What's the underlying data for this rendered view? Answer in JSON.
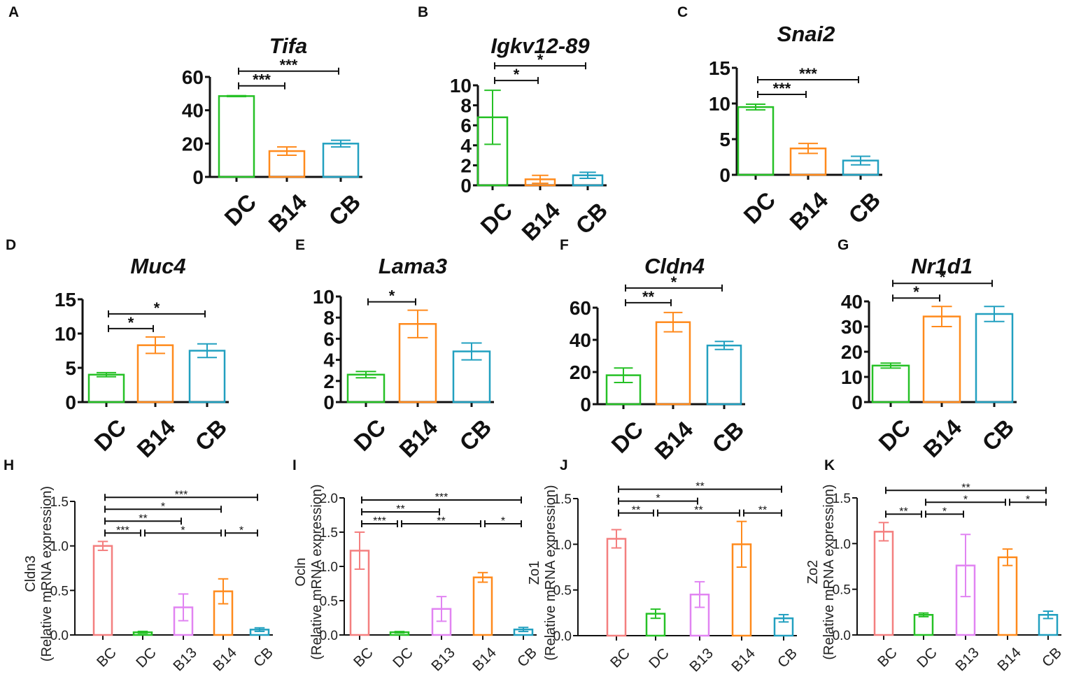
{
  "colors": {
    "BC": "#f47f7f",
    "DC": "#26c126",
    "B13": "#e184f2",
    "B14": "#ff8a1c",
    "CB": "#22a0c0",
    "axis": "#111111"
  },
  "chart_data": [
    {
      "panel": "A",
      "type": "bar",
      "title": "Tifa",
      "ylabel": "",
      "categories": [
        "DC",
        "B14",
        "CB"
      ],
      "values": [
        48.5,
        15.5,
        20
      ],
      "errors": [
        0.3,
        2.5,
        2
      ],
      "ylim": [
        0,
        60
      ],
      "yticks": [
        "0",
        "20",
        "40",
        "60"
      ],
      "comparisons": [
        {
          "from": 0,
          "to": 1,
          "label": "***",
          "level": 0
        },
        {
          "from": 0,
          "to": 2,
          "label": "***",
          "level": 1
        }
      ]
    },
    {
      "panel": "B",
      "type": "bar",
      "title": "Igkv12-89",
      "ylabel": "",
      "categories": [
        "DC",
        "B14",
        "CB"
      ],
      "values": [
        6.8,
        0.6,
        1.0
      ],
      "errors": [
        2.7,
        0.4,
        0.3
      ],
      "ylim": [
        0,
        10
      ],
      "yticks": [
        "0",
        "2",
        "4",
        "6",
        "8",
        "10"
      ],
      "comparisons": [
        {
          "from": 0,
          "to": 1,
          "label": "*",
          "level": 0
        },
        {
          "from": 0,
          "to": 2,
          "label": "*",
          "level": 1
        }
      ]
    },
    {
      "panel": "C",
      "type": "bar",
      "title": "Snai2",
      "ylabel": "",
      "categories": [
        "DC",
        "B14",
        "CB"
      ],
      "values": [
        9.5,
        3.7,
        2.0
      ],
      "errors": [
        0.4,
        0.7,
        0.6
      ],
      "ylim": [
        0,
        15
      ],
      "yticks": [
        "0",
        "5",
        "10",
        "15"
      ],
      "comparisons": [
        {
          "from": 0,
          "to": 1,
          "label": "***",
          "level": 0
        },
        {
          "from": 0,
          "to": 2,
          "label": "***",
          "level": 1
        }
      ]
    },
    {
      "panel": "D",
      "type": "bar",
      "title": "Muc4",
      "ylabel": "",
      "categories": [
        "DC",
        "B14",
        "CB"
      ],
      "values": [
        4.0,
        8.3,
        7.5
      ],
      "errors": [
        0.3,
        1.2,
        1.0
      ],
      "ylim": [
        0,
        15
      ],
      "yticks": [
        "0",
        "5",
        "10",
        "15"
      ],
      "comparisons": [
        {
          "from": 0,
          "to": 1,
          "label": "*",
          "level": 0
        },
        {
          "from": 0,
          "to": 2,
          "label": "*",
          "level": 1
        }
      ]
    },
    {
      "panel": "E",
      "type": "bar",
      "title": "Lama3",
      "ylabel": "",
      "categories": [
        "DC",
        "B14",
        "CB"
      ],
      "values": [
        2.6,
        7.4,
        4.8
      ],
      "errors": [
        0.3,
        1.3,
        0.8
      ],
      "ylim": [
        0,
        10
      ],
      "yticks": [
        "0",
        "2",
        "4",
        "6",
        "8",
        "10"
      ],
      "comparisons": [
        {
          "from": 0,
          "to": 1,
          "label": "*",
          "level": 0
        }
      ]
    },
    {
      "panel": "F",
      "type": "bar",
      "title": "Cldn4",
      "ylabel": "",
      "categories": [
        "DC",
        "B14",
        "CB"
      ],
      "values": [
        18,
        51,
        36.5
      ],
      "errors": [
        4.5,
        6,
        2.5
      ],
      "ylim": [
        0,
        60
      ],
      "yticks": [
        "0",
        "20",
        "40",
        "60"
      ],
      "comparisons": [
        {
          "from": 0,
          "to": 1,
          "label": "**",
          "level": 0
        },
        {
          "from": 0,
          "to": 2,
          "label": "*",
          "level": 1
        }
      ]
    },
    {
      "panel": "G",
      "type": "bar",
      "title": "Nr1d1",
      "ylabel": "",
      "categories": [
        "DC",
        "B14",
        "CB"
      ],
      "values": [
        14.5,
        34,
        35
      ],
      "errors": [
        1,
        4,
        3
      ],
      "ylim": [
        0,
        40
      ],
      "yticks": [
        "0",
        "10",
        "20",
        "30",
        "40"
      ],
      "comparisons": [
        {
          "from": 0,
          "to": 1,
          "label": "*",
          "level": 0
        },
        {
          "from": 0,
          "to": 2,
          "label": "*",
          "level": 1
        }
      ]
    },
    {
      "panel": "H",
      "type": "bar",
      "title": "",
      "ylabel": "Cldn3",
      "ylabel2": "(Relative mRNA expression)",
      "categories": [
        "BC",
        "DC",
        "B13",
        "B14",
        "CB"
      ],
      "values": [
        1.0,
        0.03,
        0.31,
        0.49,
        0.06
      ],
      "errors": [
        0.05,
        0.01,
        0.15,
        0.14,
        0.02
      ],
      "ylim": [
        0,
        1.5
      ],
      "yticks": [
        "0.0",
        "0.5",
        "1.0",
        "1.5"
      ],
      "comparisons": [
        {
          "from": 0,
          "to": 1,
          "label": "***",
          "level": 0
        },
        {
          "from": 1,
          "to": 3,
          "label": "*",
          "level": 0
        },
        {
          "from": 3,
          "to": 4,
          "label": "*",
          "level": 0
        },
        {
          "from": 0,
          "to": 2,
          "label": "**",
          "level": 1
        },
        {
          "from": 0,
          "to": 3,
          "label": "*",
          "level": 2
        },
        {
          "from": 0,
          "to": 4,
          "label": "***",
          "level": 3
        }
      ]
    },
    {
      "panel": "I",
      "type": "bar",
      "title": "",
      "ylabel": "Ocln",
      "ylabel2": "(Relative mRNA expression)",
      "categories": [
        "BC",
        "DC",
        "B13",
        "B14",
        "CB"
      ],
      "values": [
        1.23,
        0.04,
        0.38,
        0.84,
        0.08
      ],
      "errors": [
        0.27,
        0.01,
        0.18,
        0.07,
        0.03
      ],
      "ylim": [
        0,
        2.0
      ],
      "yticks": [
        "0.0",
        "0.5",
        "1.0",
        "1.5",
        "2.0"
      ],
      "comparisons": [
        {
          "from": 0,
          "to": 1,
          "label": "***",
          "level": 0
        },
        {
          "from": 1,
          "to": 3,
          "label": "**",
          "level": 0
        },
        {
          "from": 3,
          "to": 4,
          "label": "*",
          "level": 0
        },
        {
          "from": 0,
          "to": 2,
          "label": "**",
          "level": 1
        },
        {
          "from": 0,
          "to": 4,
          "label": "***",
          "level": 2
        }
      ]
    },
    {
      "panel": "J",
      "type": "bar",
      "title": "",
      "ylabel": "Zo1",
      "ylabel2": "(Relative mRNA expression)",
      "categories": [
        "BC",
        "DC",
        "B13",
        "B14",
        "CB"
      ],
      "values": [
        1.06,
        0.24,
        0.45,
        1.0,
        0.19
      ],
      "errors": [
        0.1,
        0.05,
        0.14,
        0.25,
        0.04
      ],
      "ylim": [
        0,
        1.5
      ],
      "yticks": [
        "0.0",
        "0.5",
        "1.0",
        "1.5"
      ],
      "comparisons": [
        {
          "from": 0,
          "to": 1,
          "label": "**",
          "level": 0
        },
        {
          "from": 1,
          "to": 3,
          "label": "**",
          "level": 0
        },
        {
          "from": 3,
          "to": 4,
          "label": "**",
          "level": 0
        },
        {
          "from": 0,
          "to": 2,
          "label": "*",
          "level": 1
        },
        {
          "from": 0,
          "to": 4,
          "label": "**",
          "level": 2
        }
      ]
    },
    {
      "panel": "K",
      "type": "bar",
      "title": "",
      "ylabel": "Zo2",
      "ylabel2": "(Relative mRNA expression)",
      "categories": [
        "BC",
        "DC",
        "B13",
        "B14",
        "CB"
      ],
      "values": [
        1.13,
        0.22,
        0.76,
        0.85,
        0.22
      ],
      "errors": [
        0.1,
        0.02,
        0.34,
        0.09,
        0.04
      ],
      "ylim": [
        0,
        1.5
      ],
      "yticks": [
        "0.0",
        "0.5",
        "1.0",
        "1.5"
      ],
      "comparisons": [
        {
          "from": 0,
          "to": 1,
          "label": "**",
          "level": 0
        },
        {
          "from": 1,
          "to": 2,
          "label": "*",
          "level": 0
        },
        {
          "from": 1,
          "to": 3,
          "label": "*",
          "level": 1
        },
        {
          "from": 3,
          "to": 4,
          "label": "*",
          "level": 1
        },
        {
          "from": 0,
          "to": 4,
          "label": "**",
          "level": 2
        }
      ]
    }
  ]
}
